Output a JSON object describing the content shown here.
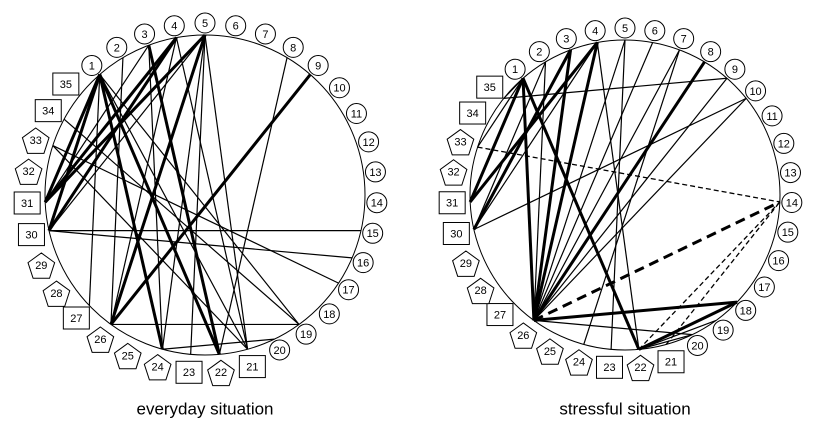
{
  "diagrams": [
    {
      "caption": "everyday situation",
      "nodes": [
        {
          "label": "1",
          "shape": "circle"
        },
        {
          "label": "2",
          "shape": "circle"
        },
        {
          "label": "3",
          "shape": "circle"
        },
        {
          "label": "4",
          "shape": "circle"
        },
        {
          "label": "5",
          "shape": "circle"
        },
        {
          "label": "6",
          "shape": "circle"
        },
        {
          "label": "7",
          "shape": "circle"
        },
        {
          "label": "8",
          "shape": "circle"
        },
        {
          "label": "9",
          "shape": "circle"
        },
        {
          "label": "10",
          "shape": "circle"
        },
        {
          "label": "11",
          "shape": "circle"
        },
        {
          "label": "12",
          "shape": "circle"
        },
        {
          "label": "13",
          "shape": "circle"
        },
        {
          "label": "14",
          "shape": "circle"
        },
        {
          "label": "15",
          "shape": "circle"
        },
        {
          "label": "16",
          "shape": "circle"
        },
        {
          "label": "17",
          "shape": "circle"
        },
        {
          "label": "18",
          "shape": "circle"
        },
        {
          "label": "19",
          "shape": "circle"
        },
        {
          "label": "20",
          "shape": "circle"
        },
        {
          "label": "21",
          "shape": "rect"
        },
        {
          "label": "22",
          "shape": "pentagon"
        },
        {
          "label": "23",
          "shape": "rect"
        },
        {
          "label": "24",
          "shape": "pentagon"
        },
        {
          "label": "25",
          "shape": "pentagon"
        },
        {
          "label": "26",
          "shape": "pentagon"
        },
        {
          "label": "27",
          "shape": "rect"
        },
        {
          "label": "28",
          "shape": "pentagon"
        },
        {
          "label": "29",
          "shape": "pentagon"
        },
        {
          "label": "30",
          "shape": "rect"
        },
        {
          "label": "31",
          "shape": "rect"
        },
        {
          "label": "32",
          "shape": "pentagon"
        },
        {
          "label": "33",
          "shape": "pentagon"
        },
        {
          "label": "34",
          "shape": "rect"
        },
        {
          "label": "35",
          "shape": "rect"
        }
      ],
      "edges": [
        {
          "from": 1,
          "to": 30,
          "style": "thick"
        },
        {
          "from": 1,
          "to": 31,
          "style": "thick"
        },
        {
          "from": 1,
          "to": 24,
          "style": "thick"
        },
        {
          "from": 1,
          "to": 22,
          "style": "thick"
        },
        {
          "from": 4,
          "to": 30,
          "style": "thick"
        },
        {
          "from": 4,
          "to": 31,
          "style": "thick"
        },
        {
          "from": 5,
          "to": 31,
          "style": "thick"
        },
        {
          "from": 9,
          "to": 26,
          "style": "thick"
        },
        {
          "from": 5,
          "to": 26,
          "style": "thick"
        },
        {
          "from": 3,
          "to": 22,
          "style": "thick"
        },
        {
          "from": 1,
          "to": 21,
          "style": "thin"
        },
        {
          "from": 1,
          "to": 27,
          "style": "thin"
        },
        {
          "from": 2,
          "to": 26,
          "style": "thin"
        },
        {
          "from": 3,
          "to": 24,
          "style": "thin"
        },
        {
          "from": 4,
          "to": 21,
          "style": "thin"
        },
        {
          "from": 5,
          "to": 24,
          "style": "thin"
        },
        {
          "from": 5,
          "to": 23,
          "style": "thin"
        },
        {
          "from": 5,
          "to": 21,
          "style": "thin"
        },
        {
          "from": 5,
          "to": 30,
          "style": "thin"
        },
        {
          "from": 4,
          "to": 26,
          "style": "thin"
        },
        {
          "from": 8,
          "to": 22,
          "style": "thin"
        },
        {
          "from": 34,
          "to": 19,
          "style": "thin"
        },
        {
          "from": 33,
          "to": 17,
          "style": "thin"
        },
        {
          "from": 33,
          "to": 21,
          "style": "thin"
        },
        {
          "from": 30,
          "to": 15,
          "style": "thin"
        },
        {
          "from": 30,
          "to": 16,
          "style": "thin"
        },
        {
          "from": 31,
          "to": 3,
          "style": "thin"
        },
        {
          "from": 1,
          "to": 19,
          "style": "thin"
        },
        {
          "from": 20,
          "to": 24,
          "style": "thin"
        },
        {
          "from": 19,
          "to": 26,
          "style": "thin"
        }
      ]
    },
    {
      "caption": "stressful situation",
      "nodes": [
        {
          "label": "1",
          "shape": "circle"
        },
        {
          "label": "2",
          "shape": "circle"
        },
        {
          "label": "3",
          "shape": "circle"
        },
        {
          "label": "4",
          "shape": "circle"
        },
        {
          "label": "5",
          "shape": "circle"
        },
        {
          "label": "6",
          "shape": "circle"
        },
        {
          "label": "7",
          "shape": "circle"
        },
        {
          "label": "8",
          "shape": "circle"
        },
        {
          "label": "9",
          "shape": "circle"
        },
        {
          "label": "10",
          "shape": "circle"
        },
        {
          "label": "11",
          "shape": "circle"
        },
        {
          "label": "12",
          "shape": "circle"
        },
        {
          "label": "13",
          "shape": "circle"
        },
        {
          "label": "14",
          "shape": "circle"
        },
        {
          "label": "15",
          "shape": "circle"
        },
        {
          "label": "16",
          "shape": "circle"
        },
        {
          "label": "17",
          "shape": "circle"
        },
        {
          "label": "18",
          "shape": "circle"
        },
        {
          "label": "19",
          "shape": "circle"
        },
        {
          "label": "20",
          "shape": "circle"
        },
        {
          "label": "21",
          "shape": "rect"
        },
        {
          "label": "22",
          "shape": "pentagon"
        },
        {
          "label": "23",
          "shape": "rect"
        },
        {
          "label": "24",
          "shape": "pentagon"
        },
        {
          "label": "25",
          "shape": "pentagon"
        },
        {
          "label": "26",
          "shape": "pentagon"
        },
        {
          "label": "27",
          "shape": "rect"
        },
        {
          "label": "28",
          "shape": "pentagon"
        },
        {
          "label": "29",
          "shape": "pentagon"
        },
        {
          "label": "30",
          "shape": "rect"
        },
        {
          "label": "31",
          "shape": "rect"
        },
        {
          "label": "32",
          "shape": "pentagon"
        },
        {
          "label": "33",
          "shape": "pentagon"
        },
        {
          "label": "34",
          "shape": "rect"
        },
        {
          "label": "35",
          "shape": "rect"
        }
      ],
      "edges": [
        {
          "from": 26,
          "to": 1,
          "style": "thick"
        },
        {
          "from": 26,
          "to": 2,
          "style": "thin"
        },
        {
          "from": 26,
          "to": 3,
          "style": "thick"
        },
        {
          "from": 26,
          "to": 4,
          "style": "thick"
        },
        {
          "from": 26,
          "to": 5,
          "style": "thin"
        },
        {
          "from": 26,
          "to": 6,
          "style": "thin"
        },
        {
          "from": 26,
          "to": 7,
          "style": "thin"
        },
        {
          "from": 26,
          "to": 8,
          "style": "thick"
        },
        {
          "from": 26,
          "to": 9,
          "style": "thin"
        },
        {
          "from": 26,
          "to": 10,
          "style": "thin"
        },
        {
          "from": 26,
          "to": 18,
          "style": "thick"
        },
        {
          "from": 26,
          "to": 14,
          "style": "dashed-thick"
        },
        {
          "from": 22,
          "to": 14,
          "style": "dashed"
        },
        {
          "from": 21,
          "to": 14,
          "style": "dashed"
        },
        {
          "from": 33,
          "to": 14,
          "style": "dashed"
        },
        {
          "from": 31,
          "to": 1,
          "style": "thick"
        },
        {
          "from": 31,
          "to": 4,
          "style": "thick"
        },
        {
          "from": 30,
          "to": 3,
          "style": "thick"
        },
        {
          "from": 30,
          "to": 4,
          "style": "thin"
        },
        {
          "from": 30,
          "to": 10,
          "style": "thin"
        },
        {
          "from": 33,
          "to": 1,
          "style": "thin"
        },
        {
          "from": 35,
          "to": 9,
          "style": "thin"
        },
        {
          "from": 22,
          "to": 1,
          "style": "thick"
        },
        {
          "from": 22,
          "to": 4,
          "style": "thin"
        },
        {
          "from": 22,
          "to": 18,
          "style": "thick"
        },
        {
          "from": 22,
          "to": 19,
          "style": "thin"
        },
        {
          "from": 22,
          "to": 20,
          "style": "thin"
        },
        {
          "from": 24,
          "to": 7,
          "style": "thin"
        },
        {
          "from": 23,
          "to": 5,
          "style": "thin"
        },
        {
          "from": 35,
          "to": 1,
          "style": "thin"
        },
        {
          "from": 30,
          "to": 2,
          "style": "thin"
        },
        {
          "from": 26,
          "to": 20,
          "style": "thin"
        }
      ]
    }
  ]
}
